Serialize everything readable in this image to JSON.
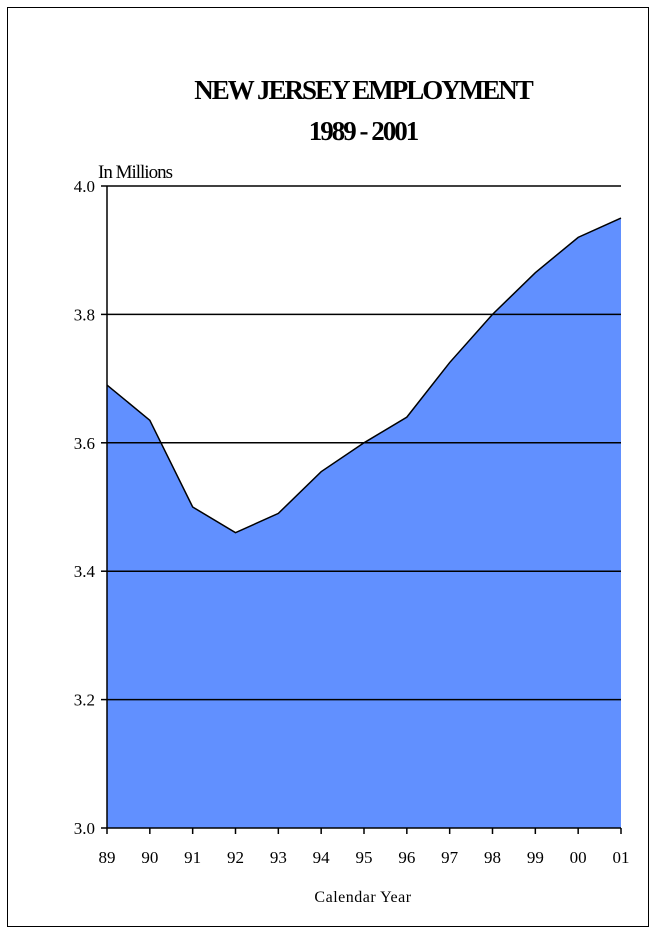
{
  "chart_data": {
    "type": "area",
    "title": "NEW JERSEY EMPLOYMENT",
    "subtitle": "1989 - 2001",
    "ylabel": "In Millions",
    "xlabel": "Calendar Year",
    "categories": [
      "89",
      "90",
      "91",
      "92",
      "93",
      "94",
      "95",
      "96",
      "97",
      "98",
      "99",
      "00",
      "01"
    ],
    "values": [
      3.69,
      3.635,
      3.5,
      3.46,
      3.49,
      3.555,
      3.6,
      3.64,
      3.725,
      3.8,
      3.865,
      3.92,
      3.95
    ],
    "ylim": [
      3.0,
      4.0
    ],
    "yticks": [
      "3.0",
      "3.2",
      "3.4",
      "3.6",
      "3.8",
      "4.0"
    ],
    "grid": true,
    "fill_color": "#6190ff",
    "line_color": "#000000"
  }
}
